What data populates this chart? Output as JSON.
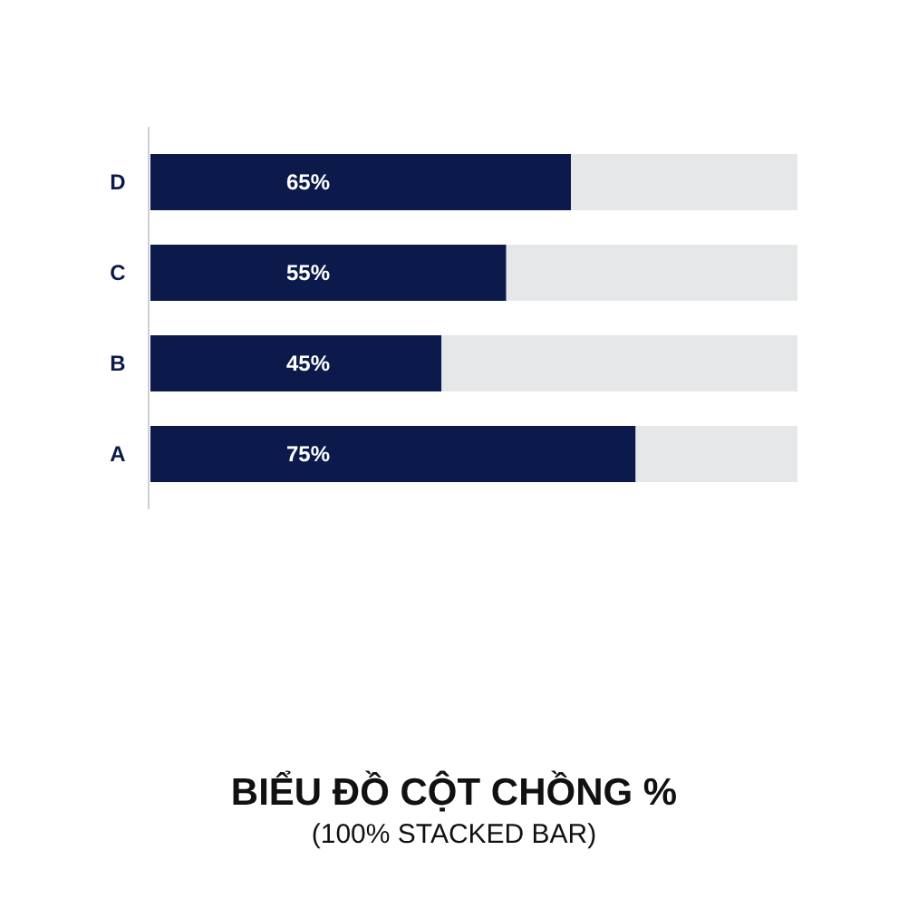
{
  "chart_data": {
    "type": "bar",
    "orientation": "horizontal",
    "stacked": true,
    "title": "BIỂU ĐỒ CỘT CHỒNG %",
    "subtitle": "(100% STACKED BAR)",
    "categories": [
      "D",
      "C",
      "B",
      "A"
    ],
    "xlim": [
      0,
      100
    ],
    "tick_labels": "y",
    "series": [
      {
        "color": "#0b1a4b",
        "values": [
          65,
          55,
          45,
          75
        ],
        "value_labels": [
          "65%",
          "55%",
          "45%",
          "75%"
        ]
      },
      {
        "color": "#e6e7e9",
        "values": [
          35,
          45,
          55,
          25
        ],
        "value_labels": [
          null,
          null,
          null,
          null
        ]
      }
    ]
  }
}
